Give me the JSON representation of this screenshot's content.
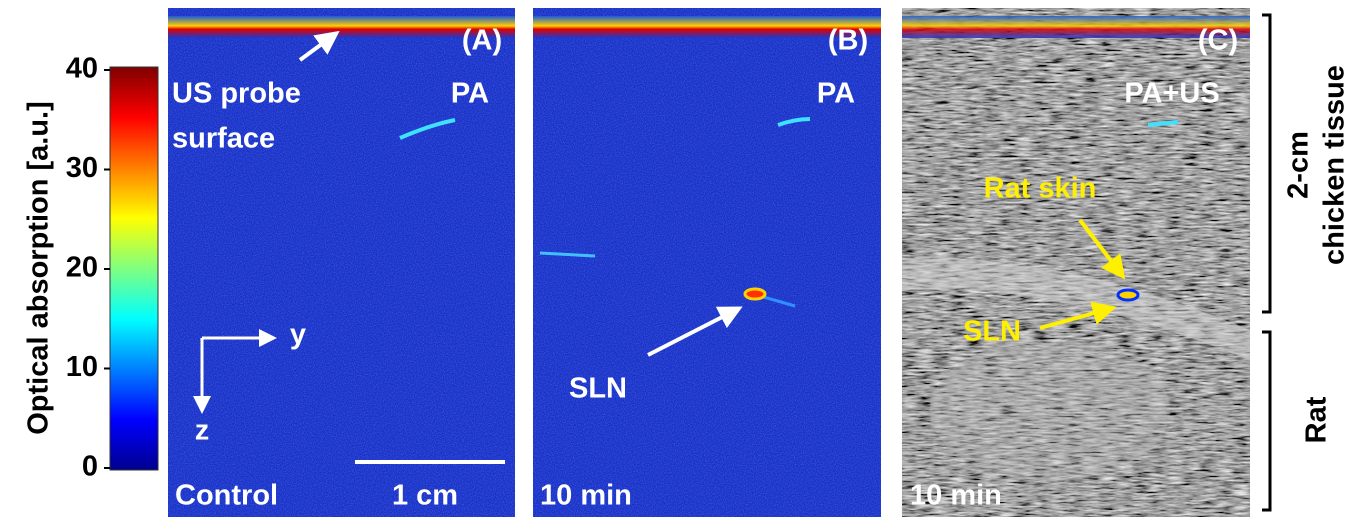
{
  "colorbar": {
    "label": "Optical absorption [a.u.]",
    "lim": [
      0,
      40
    ],
    "ticks": [
      0,
      10,
      20,
      30,
      40
    ]
  },
  "panels": [
    {
      "tag": "(A)",
      "mode": "PA",
      "time": "Control",
      "probe_label": [
        "US probe",
        "surface"
      ],
      "scale_bar": "1 cm",
      "axis_y": "y",
      "axis_z": "z"
    },
    {
      "tag": "(B)",
      "mode": "PA",
      "time": "10 min",
      "node_label": "SLN"
    },
    {
      "tag": "(C)",
      "mode": "PA+US",
      "time": "10 min",
      "skin_label": "Rat skin",
      "node_label": "SLN"
    }
  ],
  "side_labels": {
    "upper": [
      "2-cm",
      "chicken tissue"
    ],
    "lower": "Rat"
  }
}
